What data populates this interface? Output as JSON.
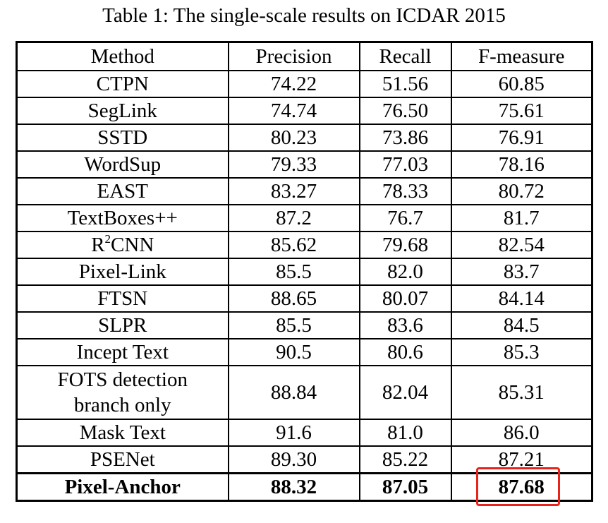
{
  "caption": "Table 1: The single-scale results on ICDAR 2015",
  "headers": [
    "Method",
    "Precision",
    "Recall",
    "F-measure"
  ],
  "rows": [
    {
      "method": "CTPN",
      "precision": "74.22",
      "recall": "51.56",
      "fmeasure": "60.85"
    },
    {
      "method": "SegLink",
      "precision": "74.74",
      "recall": "76.50",
      "fmeasure": "75.61"
    },
    {
      "method": "SSTD",
      "precision": "80.23",
      "recall": "73.86",
      "fmeasure": "76.91"
    },
    {
      "method": "WordSup",
      "precision": "79.33",
      "recall": "77.03",
      "fmeasure": "78.16"
    },
    {
      "method": "EAST",
      "precision": "83.27",
      "recall": "78.33",
      "fmeasure": "80.72"
    },
    {
      "method": "TextBoxes++",
      "precision": "87.2",
      "recall": "76.7",
      "fmeasure": "81.7"
    },
    {
      "method_base": "R",
      "method_sup": "2",
      "method_rest": "CNN",
      "precision": "85.62",
      "recall": "79.68",
      "fmeasure": "82.54"
    },
    {
      "method": "Pixel-Link",
      "precision": "85.5",
      "recall": "82.0",
      "fmeasure": "83.7"
    },
    {
      "method": "FTSN",
      "precision": "88.65",
      "recall": "80.07",
      "fmeasure": "84.14"
    },
    {
      "method": "SLPR",
      "precision": "85.5",
      "recall": "83.6",
      "fmeasure": "84.5"
    },
    {
      "method": "Incept Text",
      "precision": "90.5",
      "recall": "80.6",
      "fmeasure": "85.3"
    },
    {
      "method_line1": "FOTS detection",
      "method_line2": "branch only",
      "precision": "88.84",
      "recall": "82.04",
      "fmeasure": "85.31"
    },
    {
      "method": "Mask Text",
      "precision": "91.6",
      "recall": "81.0",
      "fmeasure": "86.0"
    },
    {
      "method": "PSENet",
      "precision": "89.30",
      "recall": "85.22",
      "fmeasure": "87.21"
    },
    {
      "method": "Pixel-Anchor",
      "precision": "88.32",
      "recall": "87.05",
      "fmeasure": "87.68"
    }
  ],
  "highlight_color": "#e8231c"
}
